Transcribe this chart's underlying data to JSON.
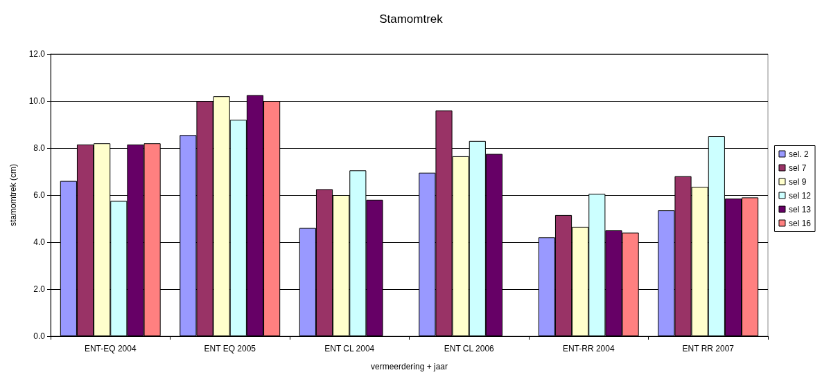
{
  "chart_data": {
    "type": "bar",
    "title": "Stamomtrek",
    "xlabel": "vermeerdering + jaar",
    "ylabel": "stamomtrek (cm)",
    "categories": [
      "ENT-EQ 2004",
      "ENT EQ 2005",
      "ENT CL 2004",
      "ENT CL 2006",
      "ENT-RR 2004",
      "ENT RR 2007"
    ],
    "series": [
      {
        "name": "sel. 2",
        "color": "#9999ff",
        "values": [
          6.6,
          8.55,
          4.6,
          6.95,
          4.2,
          5.35
        ]
      },
      {
        "name": "sel 7",
        "color": "#993366",
        "values": [
          8.15,
          10.0,
          6.25,
          9.6,
          5.15,
          6.8
        ]
      },
      {
        "name": "sel 9",
        "color": "#ffffcc",
        "values": [
          8.2,
          10.2,
          6.0,
          7.65,
          4.65,
          6.35
        ]
      },
      {
        "name": "sel 12",
        "color": "#ccffff",
        "values": [
          5.75,
          9.2,
          7.05,
          8.3,
          6.05,
          8.5
        ]
      },
      {
        "name": "sel 13",
        "color": "#660066",
        "values": [
          8.15,
          10.25,
          5.8,
          7.75,
          4.5,
          5.85
        ]
      },
      {
        "name": "sel 16",
        "color": "#ff8080",
        "values": [
          8.2,
          10.0,
          null,
          null,
          4.4,
          5.9
        ]
      }
    ],
    "ylim": [
      0,
      12
    ],
    "yticks": [
      {
        "value": 0,
        "label": "0.0"
      },
      {
        "value": 2,
        "label": "2.0"
      },
      {
        "value": 4,
        "label": "4.0"
      },
      {
        "value": 6,
        "label": "6.0"
      },
      {
        "value": 8,
        "label": "8.0"
      },
      {
        "value": 10,
        "label": "10.0"
      },
      {
        "value": 12,
        "label": "12.0"
      }
    ],
    "grid": "y",
    "legend": "right"
  }
}
